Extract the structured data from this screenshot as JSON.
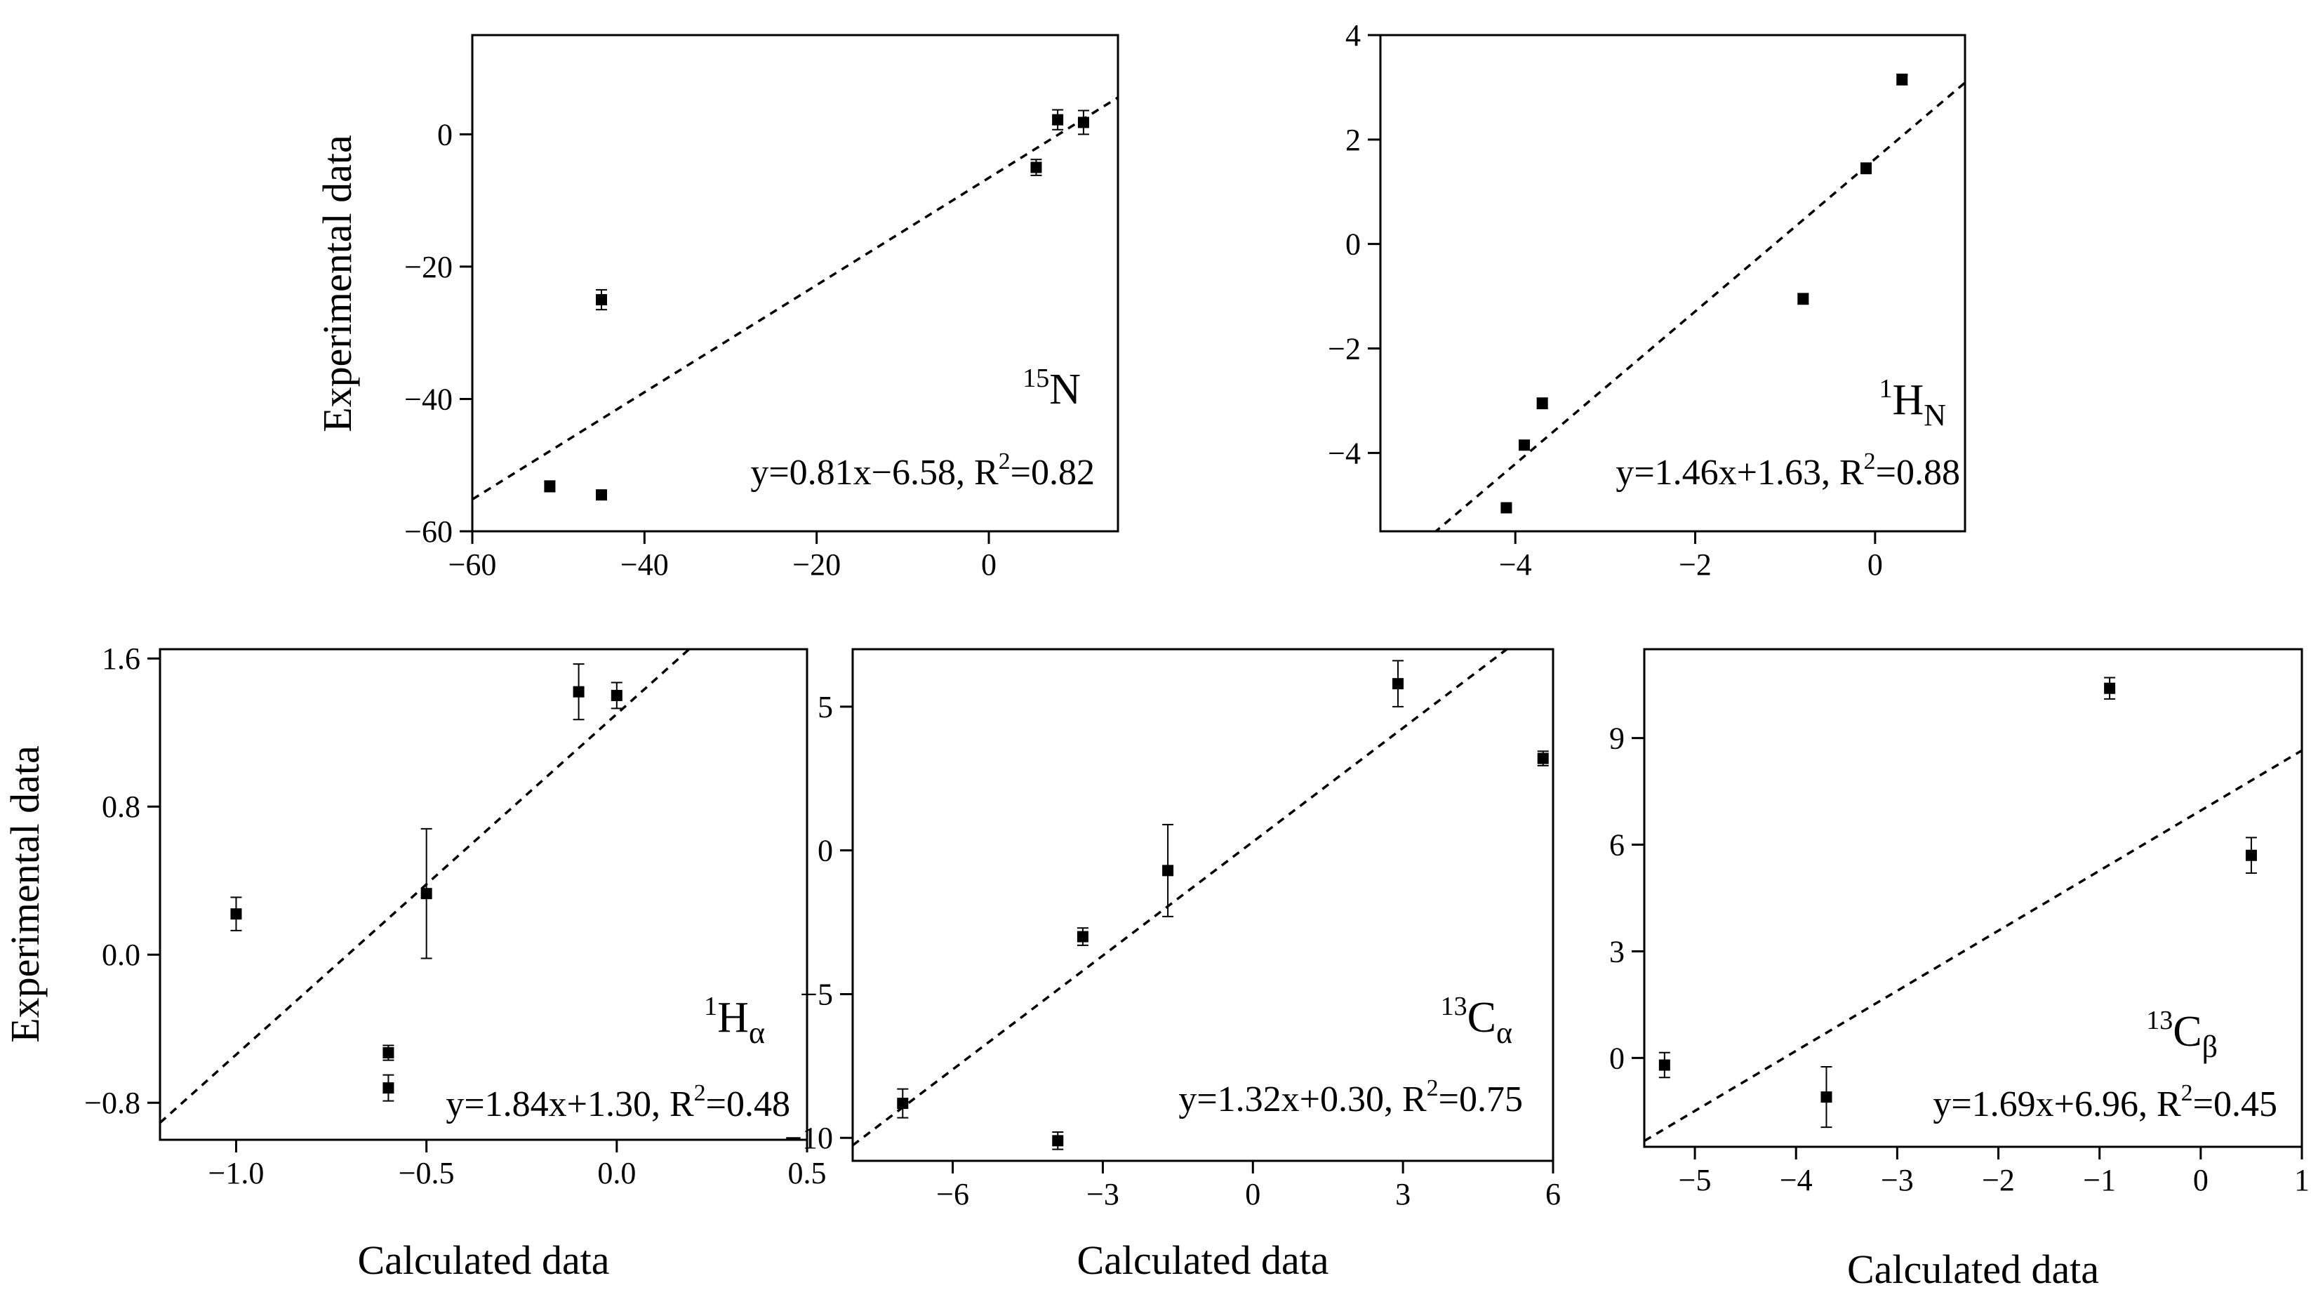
{
  "chart_data": [
    {
      "type": "scatter",
      "id": "n15",
      "nucleus": "15",
      "symbol": "N",
      "subscript": "",
      "equation": "y=0.81x−6.58, R",
      "r2": "=0.82",
      "r2_exp": "2",
      "xlim": [
        -60,
        15
      ],
      "ylim": [
        -60,
        15
      ],
      "xticks": [
        -60,
        -40,
        -20,
        0
      ],
      "yticks": [
        -60,
        -40,
        -20,
        0
      ],
      "xlabel": "",
      "ylabel": "Experimental data",
      "fit": {
        "slope": 0.81,
        "intercept": -6.58
      },
      "points": [
        {
          "x": -51,
          "y": -53.2,
          "err": 0.8
        },
        {
          "x": -45,
          "y": -25,
          "err": 1.5
        },
        {
          "x": -45,
          "y": -54.5,
          "err": 0.6
        },
        {
          "x": 5.5,
          "y": -5,
          "err": 1.2
        },
        {
          "x": 8,
          "y": 2.2,
          "err": 1.5
        },
        {
          "x": 11,
          "y": 1.8,
          "err": 1.8
        }
      ]
    },
    {
      "type": "scatter",
      "id": "h1n",
      "nucleus": "1",
      "symbol": "H",
      "subscript": "N",
      "equation": "y=1.46x+1.63, R",
      "r2": "=0.88",
      "r2_exp": "2",
      "xlim": [
        -5.5,
        1
      ],
      "ylim": [
        -5.5,
        4
      ],
      "xticks": [
        -4,
        -2,
        0
      ],
      "yticks": [
        -4,
        -2,
        0,
        2,
        4
      ],
      "xlabel": "",
      "ylabel": "",
      "fit": {
        "slope": 1.46,
        "intercept": 1.63
      },
      "points": [
        {
          "x": -4.1,
          "y": -5.05,
          "err": 0.05
        },
        {
          "x": -3.9,
          "y": -3.85,
          "err": 0.08
        },
        {
          "x": -3.7,
          "y": -3.05,
          "err": 0.1
        },
        {
          "x": -0.8,
          "y": -1.05,
          "err": 0.1
        },
        {
          "x": -0.1,
          "y": 1.45,
          "err": 0.1
        },
        {
          "x": 0.3,
          "y": 3.15,
          "err": 0.1
        }
      ]
    },
    {
      "type": "scatter",
      "id": "h1a",
      "nucleus": "1",
      "symbol": "H",
      "subscript": "α",
      "equation": "y=1.84x+1.30, R",
      "r2": "=0.48",
      "r2_exp": "2",
      "xlim": [
        -1.2,
        0.5
      ],
      "ylim": [
        -1.0,
        1.65
      ],
      "xticks": [
        -1.0,
        -0.5,
        0.0,
        0.5
      ],
      "xtick_labels": [
        "-1.0",
        "-0.5",
        "0.0",
        "0.5"
      ],
      "yticks": [
        -0.8,
        0.0,
        0.8,
        1.6
      ],
      "ytick_labels": [
        "-0.8",
        "0.0",
        "0.8",
        "1.6"
      ],
      "xlabel": "Calculated data",
      "ylabel": "Experimental data",
      "fit": {
        "slope": 1.84,
        "intercept": 1.3
      },
      "points": [
        {
          "x": -1.0,
          "y": 0.22,
          "err": 0.09
        },
        {
          "x": -0.6,
          "y": -0.53,
          "err": 0.04
        },
        {
          "x": -0.6,
          "y": -0.72,
          "err": 0.07
        },
        {
          "x": -0.5,
          "y": 0.33,
          "err": 0.35
        },
        {
          "x": -0.1,
          "y": 1.42,
          "err": 0.15
        },
        {
          "x": 0.0,
          "y": 1.4,
          "err": 0.07
        }
      ]
    },
    {
      "type": "scatter",
      "id": "c13a",
      "nucleus": "13",
      "symbol": "C",
      "subscript": "α",
      "equation": "y=1.32x+0.30, R",
      "r2": "=0.75",
      "r2_exp": "2",
      "xlim": [
        -8,
        6
      ],
      "ylim": [
        -10.8,
        7
      ],
      "xticks": [
        -6,
        -3,
        0,
        3,
        6
      ],
      "yticks": [
        -10,
        -5,
        0,
        5
      ],
      "xlabel": "Calculated data",
      "ylabel": "",
      "fit": {
        "slope": 1.32,
        "intercept": 0.3
      },
      "points": [
        {
          "x": -7,
          "y": -8.8,
          "err": 0.5
        },
        {
          "x": -3.9,
          "y": -10.1,
          "err": 0.3
        },
        {
          "x": -3.4,
          "y": -3.0,
          "err": 0.3
        },
        {
          "x": -1.7,
          "y": -0.7,
          "err": 1.6
        },
        {
          "x": 2.9,
          "y": 5.8,
          "err": 0.8
        },
        {
          "x": 5.8,
          "y": 3.2,
          "err": 0.25
        }
      ]
    },
    {
      "type": "scatter",
      "id": "c13b",
      "nucleus": "13",
      "symbol": "C",
      "subscript": "β",
      "equation": "y=1.69x+6.96, R",
      "r2": "=0.45",
      "r2_exp": "2",
      "xlim": [
        -5.5,
        1
      ],
      "ylim": [
        -2.5,
        11.5
      ],
      "xticks": [
        -5,
        -4,
        -3,
        -2,
        -1,
        0,
        1
      ],
      "yticks": [
        0,
        3,
        6,
        9
      ],
      "xlabel": "Calculated data",
      "ylabel": "",
      "fit": {
        "slope": 1.69,
        "intercept": 6.96
      },
      "points": [
        {
          "x": -5.3,
          "y": -0.2,
          "err": 0.35
        },
        {
          "x": -3.7,
          "y": -1.1,
          "err": 0.85
        },
        {
          "x": -0.9,
          "y": 10.4,
          "err": 0.3
        },
        {
          "x": 0.5,
          "y": 5.7,
          "err": 0.5
        }
      ]
    }
  ]
}
